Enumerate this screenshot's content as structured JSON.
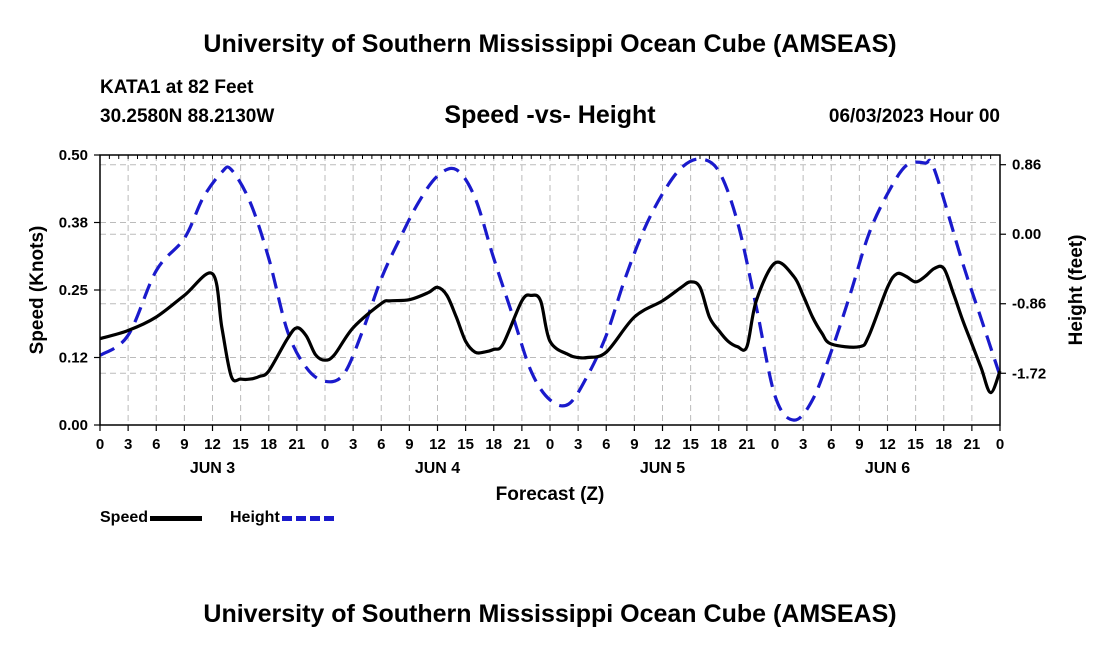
{
  "header": {
    "title": "University of Southern Mississippi Ocean Cube (AMSEAS)",
    "station": "KATA1 at 82 Feet",
    "coords": "30.2580N  88.2130W",
    "chart_title": "Speed -vs- Height",
    "datetime": "06/03/2023 Hour 00"
  },
  "footer": {
    "title": "University of Southern Mississippi Ocean Cube (AMSEAS)"
  },
  "legend": {
    "speed_label": "Speed",
    "height_label": "Height"
  },
  "colors": {
    "speed": "#000000",
    "height": "#1a1acc",
    "grid": "#bbbbbb"
  },
  "chart_data": {
    "type": "line",
    "title": "Speed -vs- Height",
    "xlabel": "Forecast (Z)",
    "ylabel": "Speed (Knots)",
    "y2label": "Height (feet)",
    "xlim": [
      0,
      96
    ],
    "ylim": [
      0,
      0.5
    ],
    "y2lim": [
      -2.36,
      0.98
    ],
    "yticks": [
      0,
      0.125,
      0.25,
      0.375,
      0.5
    ],
    "yticklabels": [
      "0.00",
      "0.12",
      "0.25",
      "0.38",
      "0.50"
    ],
    "y2ticks": [
      -1.72,
      -0.86,
      0.0,
      0.86
    ],
    "y2ticklabels": [
      "-1.72",
      "-0.86",
      "0.00",
      "0.86"
    ],
    "xticks": [
      0,
      3,
      6,
      9,
      12,
      15,
      18,
      21,
      24,
      27,
      30,
      33,
      36,
      39,
      42,
      45,
      48,
      51,
      54,
      57,
      60,
      63,
      66,
      69,
      72,
      75,
      78,
      81,
      84,
      87,
      90,
      93,
      96
    ],
    "xticklabels": [
      "0",
      "3",
      "6",
      "9",
      "12",
      "15",
      "18",
      "21",
      "0",
      "3",
      "6",
      "9",
      "12",
      "15",
      "18",
      "21",
      "0",
      "3",
      "6",
      "9",
      "12",
      "15",
      "18",
      "21",
      "0",
      "3",
      "6",
      "9",
      "12",
      "15",
      "18",
      "21",
      "0"
    ],
    "day_labels": [
      {
        "x": 12,
        "label": "JUN 3"
      },
      {
        "x": 36,
        "label": "JUN 4"
      },
      {
        "x": 60,
        "label": "JUN 5"
      },
      {
        "x": 84,
        "label": "JUN 6"
      }
    ],
    "series": [
      {
        "name": "Speed",
        "axis": "left",
        "x": [
          0,
          3,
          6,
          9,
          12,
          13,
          14,
          15,
          16,
          17,
          18,
          20,
          21,
          22,
          23,
          24,
          25,
          27,
          30,
          31,
          33,
          35,
          36,
          37,
          38,
          39,
          40,
          41,
          42,
          43,
          45,
          46,
          47,
          48,
          50,
          51,
          52,
          54,
          57,
          60,
          62,
          63,
          64,
          65,
          66,
          67,
          68,
          69,
          70,
          72,
          74,
          75,
          76,
          77,
          78,
          81,
          82,
          84,
          85,
          86,
          87,
          88,
          89,
          90,
          91,
          92,
          93,
          94,
          95,
          96
        ],
        "y": [
          0.16,
          0.175,
          0.2,
          0.24,
          0.28,
          0.18,
          0.09,
          0.085,
          0.085,
          0.09,
          0.1,
          0.16,
          0.18,
          0.165,
          0.13,
          0.12,
          0.13,
          0.18,
          0.225,
          0.23,
          0.232,
          0.245,
          0.255,
          0.24,
          0.2,
          0.155,
          0.135,
          0.135,
          0.14,
          0.15,
          0.23,
          0.24,
          0.23,
          0.155,
          0.13,
          0.125,
          0.125,
          0.135,
          0.2,
          0.23,
          0.255,
          0.265,
          0.255,
          0.2,
          0.175,
          0.155,
          0.145,
          0.145,
          0.23,
          0.3,
          0.275,
          0.24,
          0.2,
          0.17,
          0.15,
          0.145,
          0.165,
          0.255,
          0.28,
          0.275,
          0.265,
          0.275,
          0.29,
          0.29,
          0.245,
          0.195,
          0.15,
          0.105,
          0.06,
          0.1
        ]
      },
      {
        "name": "Height",
        "axis": "right",
        "x": [
          0,
          3,
          6,
          9,
          11,
          13,
          14,
          16,
          18,
          20,
          22,
          24,
          26,
          28,
          30,
          32,
          34,
          36,
          38,
          40,
          42,
          44,
          46,
          48,
          50,
          52,
          54,
          56,
          58,
          60,
          62,
          64,
          66,
          68,
          70,
          72,
          74,
          76,
          78,
          80,
          82,
          84,
          86,
          88,
          89,
          92,
          94,
          96
        ],
        "y": [
          -1.5,
          -1.25,
          -0.45,
          -0.05,
          0.45,
          0.77,
          0.8,
          0.4,
          -0.3,
          -1.2,
          -1.65,
          -1.82,
          -1.73,
          -1.2,
          -0.55,
          -0.05,
          0.4,
          0.72,
          0.8,
          0.45,
          -0.3,
          -1.0,
          -1.7,
          -2.05,
          -2.1,
          -1.75,
          -1.25,
          -0.55,
          0.05,
          0.5,
          0.82,
          0.93,
          0.78,
          0.15,
          -0.9,
          -2.0,
          -2.3,
          -2.05,
          -1.45,
          -0.75,
          0.0,
          0.5,
          0.85,
          0.88,
          0.8,
          -0.35,
          -1.05,
          -1.75
        ]
      }
    ]
  }
}
